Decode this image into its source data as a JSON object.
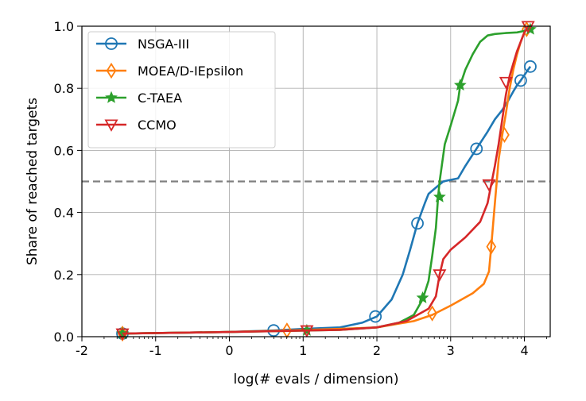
{
  "chart_data": {
    "type": "line",
    "xlabel": "log(# evals / dimension)",
    "ylabel": "Share of reached targets",
    "xlim": [
      -2,
      4.35
    ],
    "ylim": [
      0,
      1.0
    ],
    "xticks": [
      -2,
      -1,
      0,
      1,
      2,
      3,
      4
    ],
    "yticks": [
      0.0,
      0.2,
      0.4,
      0.6,
      0.8,
      1.0
    ],
    "grid": true,
    "legend_position": "top-left",
    "reference_line": {
      "y": 0.5,
      "style": "dashed",
      "color": "#808080"
    },
    "series": [
      {
        "name": "NSGA-III",
        "color": "#1f77b4",
        "marker": "circle",
        "x": [
          -1.45,
          0.0,
          0.6,
          1.0,
          1.5,
          1.8,
          2.0,
          2.2,
          2.35,
          2.45,
          2.55,
          2.65,
          2.7,
          2.8,
          2.9,
          3.0,
          3.1,
          3.2,
          3.35,
          3.5,
          3.6,
          3.7,
          3.78,
          3.85,
          3.9,
          3.95,
          4.05,
          4.08
        ],
        "y": [
          0.01,
          0.015,
          0.02,
          0.025,
          0.03,
          0.045,
          0.065,
          0.12,
          0.2,
          0.28,
          0.365,
          0.43,
          0.46,
          0.48,
          0.5,
          0.505,
          0.51,
          0.55,
          0.605,
          0.66,
          0.7,
          0.73,
          0.76,
          0.79,
          0.81,
          0.825,
          0.86,
          0.87
        ],
        "markers_x": [
          -1.45,
          0.6,
          1.98,
          2.55,
          3.35,
          3.95,
          4.08
        ],
        "markers_y": [
          0.01,
          0.02,
          0.065,
          0.365,
          0.605,
          0.825,
          0.87
        ]
      },
      {
        "name": "MOEA/D-IEpsilon",
        "color": "#ff7f0e",
        "marker": "diamond",
        "x": [
          -1.45,
          0.0,
          0.78,
          1.5,
          2.0,
          2.5,
          2.75,
          3.0,
          3.3,
          3.45,
          3.52,
          3.55,
          3.6,
          3.65,
          3.7,
          3.75,
          3.8,
          3.85,
          3.9,
          3.95,
          4.0,
          4.03
        ],
        "y": [
          0.01,
          0.015,
          0.02,
          0.025,
          0.03,
          0.05,
          0.07,
          0.1,
          0.14,
          0.17,
          0.21,
          0.29,
          0.43,
          0.57,
          0.65,
          0.72,
          0.8,
          0.86,
          0.91,
          0.95,
          0.98,
          0.99
        ],
        "markers_x": [
          -1.45,
          0.78,
          2.75,
          3.55,
          3.73,
          4.03
        ],
        "markers_y": [
          0.01,
          0.02,
          0.075,
          0.29,
          0.65,
          0.99
        ]
      },
      {
        "name": "C-TAEA",
        "color": "#2ca02c",
        "marker": "star",
        "x": [
          -1.45,
          0.0,
          1.05,
          1.5,
          2.0,
          2.3,
          2.5,
          2.62,
          2.7,
          2.75,
          2.8,
          2.83,
          2.85,
          2.88,
          2.92,
          3.0,
          3.1,
          3.13,
          3.2,
          3.3,
          3.4,
          3.5,
          3.6,
          3.75,
          3.9,
          4.0,
          4.08
        ],
        "y": [
          0.01,
          0.015,
          0.02,
          0.022,
          0.03,
          0.045,
          0.07,
          0.12,
          0.18,
          0.26,
          0.35,
          0.45,
          0.5,
          0.55,
          0.62,
          0.68,
          0.76,
          0.81,
          0.86,
          0.91,
          0.95,
          0.97,
          0.975,
          0.978,
          0.98,
          0.985,
          0.99
        ],
        "markers_x": [
          -1.45,
          1.05,
          2.62,
          2.85,
          3.13,
          4.08
        ],
        "markers_y": [
          0.01,
          0.02,
          0.125,
          0.45,
          0.81,
          0.99
        ]
      },
      {
        "name": "CCMO",
        "color": "#d62728",
        "marker": "triangle-down",
        "x": [
          -1.45,
          0.0,
          1.05,
          1.5,
          2.0,
          2.4,
          2.7,
          2.8,
          2.85,
          2.9,
          3.0,
          3.2,
          3.4,
          3.5,
          3.55,
          3.6,
          3.65,
          3.7,
          3.75,
          3.8,
          3.85,
          3.9,
          3.95,
          4.0,
          4.05
        ],
        "y": [
          0.01,
          0.015,
          0.02,
          0.022,
          0.03,
          0.05,
          0.09,
          0.13,
          0.2,
          0.25,
          0.28,
          0.32,
          0.37,
          0.43,
          0.49,
          0.55,
          0.62,
          0.7,
          0.78,
          0.84,
          0.88,
          0.92,
          0.95,
          0.98,
          1.0
        ],
        "markers_x": [
          -1.45,
          1.05,
          2.85,
          3.52,
          3.75,
          4.05
        ],
        "markers_y": [
          0.01,
          0.02,
          0.2,
          0.49,
          0.82,
          1.0
        ]
      }
    ]
  }
}
